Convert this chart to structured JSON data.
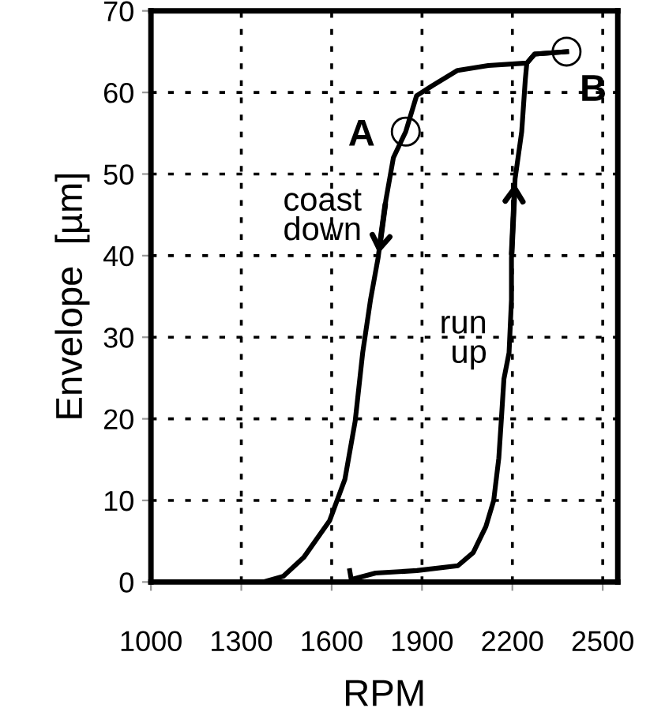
{
  "chart_data": {
    "type": "line",
    "xlabel": "RPM",
    "ylabel": "Envelope  [µm]",
    "series": [
      {
        "color": "#000000",
        "x": [
          2380,
          2274,
          2248,
          2120,
          2018,
          1933,
          1882,
          1846,
          1805,
          1780,
          1754,
          1729,
          1703,
          1678,
          1644,
          1593,
          1507,
          1439,
          1372,
          1000
        ],
        "values": [
          65,
          64.7,
          63.6,
          63.3,
          62.7,
          60.8,
          59.6,
          55.2,
          52,
          46.8,
          39.7,
          34.6,
          28.1,
          19.7,
          12.6,
          7.5,
          3,
          0.7,
          0,
          0
        ]
      },
      {
        "color": "#000000",
        "x": [
          1660,
          1665,
          1746,
          1883,
          2019,
          2070,
          2112,
          2138,
          2155,
          2163,
          2172,
          2189,
          2197,
          2197,
          2209,
          2231,
          2243,
          2248,
          2274,
          2380
        ],
        "values": [
          1.4,
          0.3,
          1.1,
          1.4,
          2,
          3.6,
          6.8,
          10,
          15.2,
          19.7,
          24.9,
          28.1,
          34.6,
          39.7,
          49.4,
          55.2,
          61.6,
          63.6,
          64.7,
          65
        ]
      },
      {
        "type": "scatter",
        "marker": "circle",
        "color": "#000000",
        "x": [
          1846,
          2380
        ],
        "values": [
          55.2,
          65
        ]
      }
    ],
    "annotations": [
      {
        "text": "A",
        "x": 1846,
        "y": 55.2
      },
      {
        "text": "B",
        "x": 2380,
        "y": 65
      },
      {
        "text": "coast\ndown",
        "x": 1729,
        "y": 40
      },
      {
        "text": "run\nup",
        "x": 2189,
        "y": 28.1
      }
    ],
    "xlim": [
      1000,
      2550
    ],
    "xticks": [
      1000,
      1300,
      1600,
      1900,
      2200,
      2500
    ],
    "ylim": [
      0,
      70
    ],
    "yticks": [
      0,
      10,
      20,
      30,
      40,
      50,
      60,
      70
    ],
    "grid": true,
    "line_style": "solid",
    "marker": "none"
  }
}
